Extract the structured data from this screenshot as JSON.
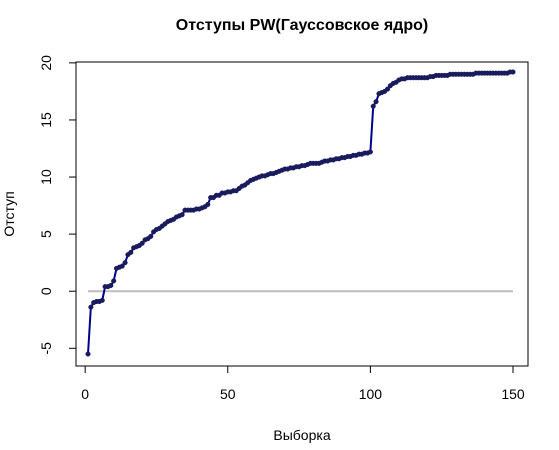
{
  "chart_data": {
    "type": "line",
    "title": "Отступы PW(Гауссовское ядро)",
    "xlabel": "Выборка",
    "ylabel": "Отступ",
    "xlim": [
      1,
      150
    ],
    "ylim": [
      -5.5,
      19.2
    ],
    "x_ticks": [
      "0",
      "50",
      "100",
      "150"
    ],
    "x_tick_values": [
      0,
      50,
      100,
      150
    ],
    "y_ticks": [
      "-5",
      "0",
      "5",
      "10",
      "15",
      "20"
    ],
    "y_tick_values": [
      -5,
      0,
      5,
      10,
      15,
      20
    ],
    "reference_line": {
      "y": 0,
      "color": "#bebebe"
    },
    "series": [
      {
        "color": "#00008b",
        "point_color": "#1a1a5e",
        "x": [
          1,
          2,
          3,
          4,
          5,
          6,
          7,
          8,
          9,
          10,
          11,
          12,
          13,
          14,
          15,
          16,
          17,
          18,
          19,
          20,
          21,
          22,
          23,
          24,
          25,
          26,
          27,
          28,
          29,
          30,
          31,
          32,
          33,
          34,
          35,
          36,
          37,
          38,
          39,
          40,
          41,
          42,
          43,
          44,
          45,
          46,
          47,
          48,
          49,
          50,
          51,
          52,
          53,
          54,
          55,
          56,
          57,
          58,
          59,
          60,
          61,
          62,
          63,
          64,
          65,
          66,
          67,
          68,
          69,
          70,
          71,
          72,
          73,
          74,
          75,
          76,
          77,
          78,
          79,
          80,
          81,
          82,
          83,
          84,
          85,
          86,
          87,
          88,
          89,
          90,
          91,
          92,
          93,
          94,
          95,
          96,
          97,
          98,
          99,
          100,
          101,
          102,
          103,
          104,
          105,
          106,
          107,
          108,
          109,
          110,
          111,
          112,
          113,
          114,
          115,
          116,
          117,
          118,
          119,
          120,
          121,
          122,
          123,
          124,
          125,
          126,
          127,
          128,
          129,
          130,
          131,
          132,
          133,
          134,
          135,
          136,
          137,
          138,
          139,
          140,
          141,
          142,
          143,
          144,
          145,
          146,
          147,
          148,
          149,
          150
        ],
        "values": [
          -5.5,
          -1.4,
          -1.0,
          -0.9,
          -0.9,
          -0.8,
          0.4,
          0.4,
          0.5,
          0.9,
          2.0,
          2.1,
          2.2,
          2.5,
          3.2,
          3.4,
          3.8,
          3.9,
          4.0,
          4.2,
          4.5,
          4.6,
          4.8,
          5.2,
          5.4,
          5.5,
          5.7,
          5.9,
          6.1,
          6.2,
          6.3,
          6.5,
          6.6,
          6.7,
          7.1,
          7.1,
          7.1,
          7.1,
          7.2,
          7.2,
          7.3,
          7.4,
          7.6,
          8.2,
          8.2,
          8.4,
          8.4,
          8.6,
          8.6,
          8.7,
          8.7,
          8.8,
          8.8,
          9.0,
          9.2,
          9.3,
          9.5,
          9.7,
          9.8,
          9.9,
          10.0,
          10.1,
          10.1,
          10.2,
          10.3,
          10.3,
          10.4,
          10.5,
          10.6,
          10.7,
          10.7,
          10.8,
          10.8,
          10.9,
          10.9,
          11.0,
          11.0,
          11.1,
          11.2,
          11.2,
          11.2,
          11.2,
          11.3,
          11.4,
          11.4,
          11.5,
          11.5,
          11.6,
          11.6,
          11.7,
          11.7,
          11.8,
          11.8,
          11.9,
          11.9,
          12.0,
          12.0,
          12.1,
          12.1,
          12.2,
          16.2,
          16.6,
          17.3,
          17.4,
          17.5,
          17.7,
          18.0,
          18.2,
          18.3,
          18.5,
          18.6,
          18.6,
          18.7,
          18.7,
          18.7,
          18.7,
          18.7,
          18.7,
          18.7,
          18.7,
          18.8,
          18.8,
          18.9,
          18.9,
          18.9,
          18.9,
          18.9,
          19.0,
          19.0,
          19.0,
          19.0,
          19.0,
          19.0,
          19.0,
          19.0,
          19.0,
          19.1,
          19.1,
          19.1,
          19.1,
          19.1,
          19.1,
          19.1,
          19.1,
          19.1,
          19.1,
          19.1,
          19.1,
          19.2,
          19.2
        ]
      }
    ]
  }
}
